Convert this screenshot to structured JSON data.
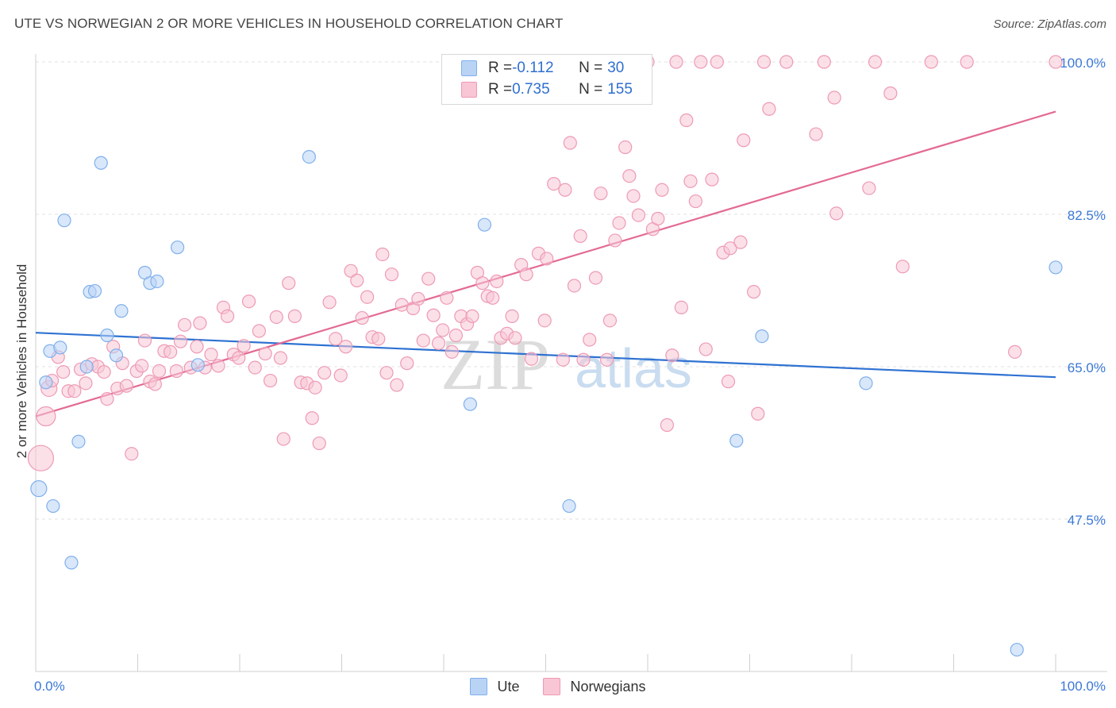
{
  "header": {
    "title": "UTE VS NORWEGIAN 2 OR MORE VEHICLES IN HOUSEHOLD CORRELATION CHART",
    "source": "Source: ZipAtlas.com"
  },
  "watermark": {
    "zip": "ZIP",
    "atlas": "atlas"
  },
  "legend_top": {
    "rows": [
      {
        "r_label": "R = ",
        "r_value": "-0.112",
        "n_label": "N = ",
        "n_value": "30",
        "color": "#7fb0ec",
        "fill": "#b9d3f5"
      },
      {
        "r_label": "R = ",
        "r_value": "0.735",
        "n_label": "N = ",
        "n_value": "155",
        "color": "#ee9ab4",
        "fill": "#f8c6d5"
      }
    ]
  },
  "legend_bottom": [
    {
      "label": "Ute",
      "fill": "#b9d3f5",
      "stroke": "#7fb0ec"
    },
    {
      "label": "Norwegians",
      "fill": "#f8c6d5",
      "stroke": "#ee9ab4"
    }
  ],
  "chart_data": {
    "type": "scatter",
    "title": "UTE VS NORWEGIAN 2 OR MORE VEHICLES IN HOUSEHOLD CORRELATION CHART",
    "xlabel": "",
    "ylabel": "2 or more Vehicles in Household",
    "xlim": [
      0,
      100
    ],
    "ylim": [
      30,
      100
    ],
    "x_tick_labels": [
      "0.0%",
      "100.0%"
    ],
    "y_ticks": [
      47.5,
      65.0,
      82.5,
      100.0
    ],
    "y_tick_labels": [
      "47.5%",
      "65.0%",
      "82.5%",
      "100.0%"
    ],
    "grid": "horizontal dashed",
    "legend_position": "top-center",
    "series": [
      {
        "name": "Ute",
        "color": "#7fb0ec",
        "trend": {
          "x": [
            0,
            100
          ],
          "y": [
            68.9,
            63.8
          ]
        },
        "points": [
          [
            0.3,
            51.0,
            10
          ],
          [
            1.0,
            63.2,
            8
          ],
          [
            1.4,
            66.8,
            8
          ],
          [
            1.7,
            49.0,
            8
          ],
          [
            2.4,
            67.2,
            8
          ],
          [
            2.8,
            81.8,
            8
          ],
          [
            3.5,
            42.5,
            8
          ],
          [
            4.2,
            56.4,
            8
          ],
          [
            5.0,
            65.0,
            8
          ],
          [
            5.3,
            73.6,
            8
          ],
          [
            5.8,
            73.7,
            8
          ],
          [
            6.4,
            88.4,
            8
          ],
          [
            7.0,
            68.6,
            8
          ],
          [
            7.9,
            66.3,
            8
          ],
          [
            8.4,
            71.4,
            8
          ],
          [
            10.7,
            75.8,
            8
          ],
          [
            11.2,
            74.6,
            8
          ],
          [
            11.9,
            74.8,
            8
          ],
          [
            13.9,
            78.7,
            8
          ],
          [
            15.9,
            65.2,
            8
          ],
          [
            26.8,
            89.1,
            8
          ],
          [
            42.6,
            60.7,
            8
          ],
          [
            44.0,
            81.3,
            8
          ],
          [
            52.3,
            49.0,
            8
          ],
          [
            56.6,
            100.0,
            8
          ],
          [
            68.7,
            56.5,
            8
          ],
          [
            71.2,
            68.5,
            8
          ],
          [
            81.4,
            63.1,
            8
          ],
          [
            96.2,
            32.5,
            8
          ],
          [
            100.0,
            76.4,
            8
          ]
        ]
      },
      {
        "name": "Norwegians",
        "color": "#ee9ab4",
        "trend": {
          "x": [
            0,
            100
          ],
          "y": [
            59.3,
            94.3
          ]
        },
        "points": [
          [
            0.5,
            54.5,
            16
          ],
          [
            1.0,
            59.3,
            12
          ],
          [
            1.3,
            62.5,
            10
          ],
          [
            1.6,
            63.4,
            8
          ],
          [
            2.2,
            66.1,
            8
          ],
          [
            2.7,
            64.4,
            8
          ],
          [
            3.2,
            62.2,
            8
          ],
          [
            3.8,
            62.2,
            8
          ],
          [
            4.4,
            64.7,
            8
          ],
          [
            4.9,
            63.1,
            8
          ],
          [
            5.5,
            65.3,
            8
          ],
          [
            6.1,
            65.0,
            8
          ],
          [
            6.7,
            64.4,
            8
          ],
          [
            7.0,
            61.3,
            8
          ],
          [
            7.6,
            67.3,
            8
          ],
          [
            8.0,
            62.5,
            8
          ],
          [
            8.5,
            65.4,
            8
          ],
          [
            8.9,
            62.8,
            8
          ],
          [
            9.4,
            55.0,
            8
          ],
          [
            9.9,
            64.5,
            8
          ],
          [
            10.4,
            65.1,
            8
          ],
          [
            10.7,
            68.0,
            8
          ],
          [
            11.2,
            63.3,
            8
          ],
          [
            11.7,
            63.0,
            8
          ],
          [
            12.1,
            64.5,
            8
          ],
          [
            12.6,
            66.8,
            8
          ],
          [
            13.2,
            66.7,
            8
          ],
          [
            13.8,
            64.5,
            8
          ],
          [
            14.2,
            67.9,
            8
          ],
          [
            14.6,
            69.8,
            8
          ],
          [
            15.2,
            64.9,
            8
          ],
          [
            15.8,
            67.3,
            8
          ],
          [
            16.1,
            70.0,
            8
          ],
          [
            16.6,
            64.9,
            8
          ],
          [
            17.2,
            66.4,
            8
          ],
          [
            17.9,
            65.1,
            8
          ],
          [
            18.4,
            71.8,
            8
          ],
          [
            18.8,
            70.8,
            8
          ],
          [
            19.4,
            66.4,
            8
          ],
          [
            19.9,
            66.0,
            8
          ],
          [
            20.4,
            67.4,
            8
          ],
          [
            20.9,
            72.5,
            8
          ],
          [
            21.5,
            64.9,
            8
          ],
          [
            21.9,
            69.1,
            8
          ],
          [
            22.5,
            66.5,
            8
          ],
          [
            23.0,
            63.4,
            8
          ],
          [
            23.6,
            70.7,
            8
          ],
          [
            24.0,
            66.0,
            8
          ],
          [
            24.3,
            56.7,
            8
          ],
          [
            24.8,
            74.6,
            8
          ],
          [
            25.4,
            70.8,
            8
          ],
          [
            26.0,
            63.2,
            8
          ],
          [
            26.6,
            63.1,
            8
          ],
          [
            27.1,
            59.1,
            8
          ],
          [
            27.4,
            62.6,
            8
          ],
          [
            27.8,
            56.2,
            8
          ],
          [
            28.3,
            64.3,
            8
          ],
          [
            28.8,
            72.4,
            8
          ],
          [
            29.4,
            68.2,
            8
          ],
          [
            29.9,
            64.0,
            8
          ],
          [
            30.4,
            67.3,
            8
          ],
          [
            30.9,
            76.0,
            8
          ],
          [
            31.5,
            74.9,
            8
          ],
          [
            32.0,
            70.6,
            8
          ],
          [
            32.5,
            73.0,
            8
          ],
          [
            33.0,
            68.4,
            8
          ],
          [
            33.6,
            68.2,
            8
          ],
          [
            34.0,
            77.9,
            8
          ],
          [
            34.4,
            64.3,
            8
          ],
          [
            34.9,
            75.6,
            8
          ],
          [
            35.4,
            62.9,
            8
          ],
          [
            35.9,
            72.1,
            8
          ],
          [
            36.4,
            65.4,
            8
          ],
          [
            37.0,
            71.7,
            8
          ],
          [
            37.5,
            72.8,
            8
          ],
          [
            38.0,
            68.0,
            8
          ],
          [
            38.5,
            75.1,
            8
          ],
          [
            39.0,
            70.9,
            8
          ],
          [
            39.5,
            67.7,
            8
          ],
          [
            39.9,
            69.2,
            8
          ],
          [
            40.3,
            72.9,
            8
          ],
          [
            40.8,
            66.7,
            8
          ],
          [
            41.2,
            68.6,
            8
          ],
          [
            41.7,
            70.8,
            8
          ],
          [
            42.3,
            69.9,
            8
          ],
          [
            42.8,
            70.8,
            8
          ],
          [
            43.3,
            75.8,
            8
          ],
          [
            43.8,
            74.6,
            8
          ],
          [
            44.3,
            73.1,
            8
          ],
          [
            44.8,
            72.9,
            8
          ],
          [
            45.2,
            74.8,
            8
          ],
          [
            45.6,
            68.3,
            8
          ],
          [
            46.2,
            68.8,
            8
          ],
          [
            46.7,
            70.8,
            8
          ],
          [
            47.0,
            68.3,
            8
          ],
          [
            47.6,
            76.7,
            8
          ],
          [
            48.1,
            75.6,
            8
          ],
          [
            48.6,
            65.9,
            8
          ],
          [
            49.3,
            78.0,
            8
          ],
          [
            49.9,
            70.3,
            8
          ],
          [
            50.1,
            77.4,
            8
          ],
          [
            50.8,
            86.0,
            8
          ],
          [
            51.7,
            65.8,
            8
          ],
          [
            51.9,
            85.3,
            8
          ],
          [
            52.4,
            90.7,
            8
          ],
          [
            52.8,
            74.3,
            8
          ],
          [
            53.4,
            80.0,
            8
          ],
          [
            53.7,
            65.8,
            8
          ],
          [
            54.3,
            68.1,
            8
          ],
          [
            54.9,
            75.2,
            8
          ],
          [
            55.4,
            84.9,
            8
          ],
          [
            56.0,
            65.8,
            8
          ],
          [
            56.3,
            70.3,
            8
          ],
          [
            56.8,
            79.5,
            8
          ],
          [
            57.2,
            81.5,
            8
          ],
          [
            57.8,
            90.2,
            8
          ],
          [
            58.2,
            86.9,
            8
          ],
          [
            58.6,
            84.6,
            8
          ],
          [
            59.1,
            82.4,
            8
          ],
          [
            60.0,
            100.0,
            8
          ],
          [
            60.5,
            80.8,
            8
          ],
          [
            61.0,
            82.0,
            8
          ],
          [
            61.4,
            85.3,
            8
          ],
          [
            61.9,
            58.3,
            8
          ],
          [
            62.4,
            66.3,
            8
          ],
          [
            62.8,
            100.0,
            8
          ],
          [
            63.3,
            71.8,
            8
          ],
          [
            63.8,
            93.3,
            8
          ],
          [
            64.2,
            86.3,
            8
          ],
          [
            64.7,
            84.0,
            8
          ],
          [
            65.2,
            100.0,
            8
          ],
          [
            65.7,
            67.0,
            8
          ],
          [
            66.3,
            86.5,
            8
          ],
          [
            66.8,
            100.0,
            8
          ],
          [
            67.4,
            78.1,
            8
          ],
          [
            67.9,
            63.3,
            8
          ],
          [
            68.1,
            78.6,
            8
          ],
          [
            69.1,
            79.3,
            8
          ],
          [
            69.4,
            91.0,
            8
          ],
          [
            70.4,
            73.6,
            8
          ],
          [
            70.8,
            59.6,
            8
          ],
          [
            71.4,
            100.0,
            8
          ],
          [
            71.9,
            94.6,
            8
          ],
          [
            73.6,
            100.0,
            8
          ],
          [
            76.5,
            91.7,
            8
          ],
          [
            77.3,
            100.0,
            8
          ],
          [
            78.3,
            95.9,
            8
          ],
          [
            78.5,
            82.6,
            8
          ],
          [
            81.7,
            85.5,
            8
          ],
          [
            82.3,
            100.0,
            8
          ],
          [
            83.8,
            96.4,
            8
          ],
          [
            85.0,
            76.5,
            8
          ],
          [
            87.8,
            100.0,
            8
          ],
          [
            91.3,
            100.0,
            8
          ],
          [
            96.0,
            66.7,
            8
          ],
          [
            100.0,
            100.0,
            8
          ]
        ]
      }
    ]
  }
}
